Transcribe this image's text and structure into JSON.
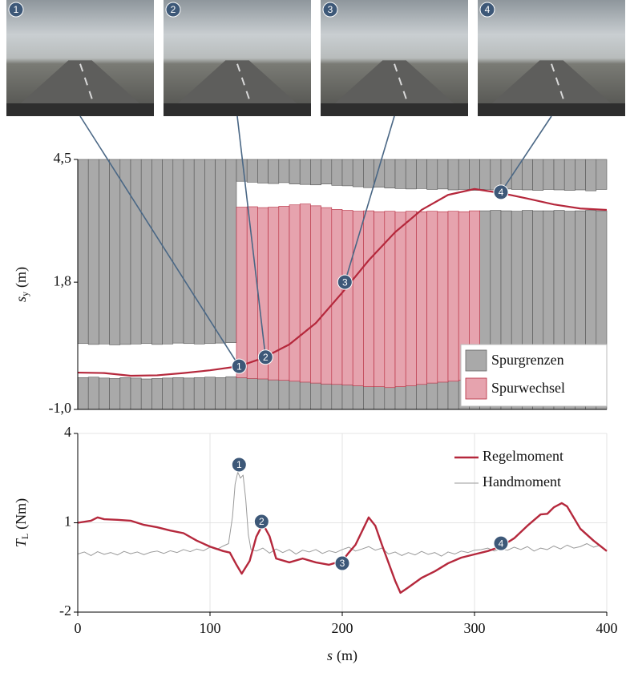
{
  "photos": [
    {
      "label": "1"
    },
    {
      "label": "2"
    },
    {
      "label": "3"
    },
    {
      "label": "4"
    }
  ],
  "chart_data": [
    {
      "type": "range",
      "ylabel": {
        "symbol": "s",
        "subscript": "y",
        "unit": "(m)"
      },
      "xlim": [
        0,
        400
      ],
      "ylim": [
        -1,
        4.5
      ],
      "yticks": [
        {
          "value": 4.5,
          "label": "4,5"
        },
        {
          "value": 1.8,
          "label": "1,8"
        },
        {
          "value": -1,
          "label": "-1,0"
        }
      ],
      "bins": [
        0,
        8,
        16,
        24,
        32,
        40,
        48,
        56,
        64,
        72,
        80,
        88,
        96,
        104,
        112,
        120,
        128,
        136,
        144,
        152,
        160,
        168,
        176,
        184,
        192,
        200,
        208,
        216,
        224,
        232,
        240,
        248,
        256,
        264,
        272,
        280,
        288,
        296,
        304,
        312,
        320,
        328,
        336,
        344,
        352,
        360,
        368,
        376,
        384,
        392,
        400
      ],
      "series": [
        {
          "name": "Spurgrenzen",
          "color": "#a9a9a9",
          "span": "outside",
          "upper": [
            0.45,
            0.43,
            0.44,
            0.42,
            0.43,
            0.44,
            0.45,
            0.43,
            0.44,
            0.46,
            0.45,
            0.44,
            0.45,
            0.46,
            0.47,
            4.02,
            4.0,
            3.98,
            3.97,
            3.99,
            3.96,
            3.95,
            3.94,
            3.96,
            3.93,
            3.92,
            3.9,
            3.88,
            3.89,
            3.87,
            3.86,
            3.85,
            3.86,
            3.84,
            3.85,
            3.83,
            3.84,
            3.82,
            3.84,
            3.83,
            3.85,
            3.84,
            3.83,
            3.82,
            3.84,
            3.83,
            3.82,
            3.83,
            3.81,
            3.84
          ],
          "lower": [
            -0.3,
            -0.29,
            -0.31,
            -0.32,
            -0.3,
            -0.31,
            -0.33,
            -0.32,
            -0.31,
            -0.3,
            -0.31,
            -0.3,
            -0.29,
            -0.3,
            -0.28,
            -0.28,
            -0.27,
            -0.28,
            -0.27,
            -0.28,
            -0.29,
            -0.28,
            -0.3,
            -0.29,
            -0.3,
            -0.31,
            -0.3,
            -0.32,
            -0.31,
            -0.3,
            -0.32,
            -0.33,
            -0.34,
            -0.33,
            -0.32,
            -0.33,
            -0.34,
            -0.33,
            3.37,
            3.38,
            3.37,
            3.36,
            3.38,
            3.37,
            3.37,
            3.38,
            3.36,
            3.37,
            3.38,
            3.37
          ]
        },
        {
          "name": "Spurwechsel",
          "color": "#e6a3ae",
          "span": "between",
          "upper": [
            null,
            null,
            null,
            null,
            null,
            null,
            null,
            null,
            null,
            null,
            null,
            null,
            null,
            null,
            null,
            3.45,
            3.46,
            3.44,
            3.45,
            3.47,
            3.5,
            3.52,
            3.48,
            3.44,
            3.4,
            3.38,
            3.36,
            3.37,
            3.35,
            3.36,
            3.34,
            3.36,
            3.35,
            3.36,
            3.35,
            3.36,
            3.35,
            3.37,
            null,
            null,
            null,
            null,
            null,
            null,
            null,
            null,
            null,
            null,
            null,
            null
          ],
          "lower": [
            null,
            null,
            null,
            null,
            null,
            null,
            null,
            null,
            null,
            null,
            null,
            null,
            null,
            null,
            null,
            -0.3,
            -0.32,
            -0.33,
            -0.35,
            -0.36,
            -0.38,
            -0.4,
            -0.42,
            -0.44,
            -0.45,
            -0.46,
            -0.48,
            -0.5,
            -0.5,
            -0.52,
            -0.5,
            -0.48,
            -0.45,
            -0.42,
            -0.4,
            -0.38,
            -0.36,
            -0.35,
            null,
            null,
            null,
            null,
            null,
            null,
            null,
            null,
            null,
            null,
            null,
            null
          ]
        }
      ],
      "path": {
        "color": "#b5283c",
        "x": [
          0,
          20,
          40,
          60,
          80,
          100,
          122,
          140,
          160,
          180,
          200,
          220,
          240,
          260,
          280,
          300,
          320,
          340,
          360,
          380,
          400
        ],
        "values": [
          -0.19,
          -0.2,
          -0.26,
          -0.25,
          -0.2,
          -0.14,
          -0.05,
          0.13,
          0.43,
          0.9,
          1.57,
          2.28,
          2.9,
          3.39,
          3.72,
          3.85,
          3.76,
          3.64,
          3.51,
          3.42,
          3.39
        ]
      },
      "annotations": [
        {
          "label": "1",
          "x": 122,
          "y": -0.05
        },
        {
          "label": "2",
          "x": 142,
          "y": 0.15
        },
        {
          "label": "3",
          "x": 202,
          "y": 1.8
        },
        {
          "label": "4",
          "x": 320,
          "y": 3.78
        }
      ],
      "legend": "lower right"
    },
    {
      "type": "line",
      "ylabel": {
        "symbol": "T",
        "subscript": "L",
        "unit": "(Nm)"
      },
      "xlabel": {
        "symbol": "s",
        "unit": "(m)"
      },
      "xlim": [
        0,
        400
      ],
      "ylim": [
        -2,
        4
      ],
      "xticks": [
        0,
        100,
        200,
        300,
        400
      ],
      "yticks": [
        -2,
        1,
        4
      ],
      "grid": true,
      "series": [
        {
          "name": "Regelmoment",
          "color": "#b5283c",
          "x": [
            0,
            10,
            15,
            20,
            30,
            40,
            50,
            60,
            70,
            80,
            90,
            100,
            110,
            115,
            120,
            124,
            130,
            135,
            140,
            145,
            150,
            160,
            170,
            180,
            190,
            200,
            205,
            210,
            220,
            225,
            230,
            240,
            244,
            250,
            260,
            270,
            280,
            290,
            300,
            310,
            320,
            330,
            340,
            350,
            355,
            360,
            366,
            370,
            380,
            390,
            400
          ],
          "values": [
            1.0,
            1.07,
            1.18,
            1.12,
            1.1,
            1.07,
            0.93,
            0.85,
            0.74,
            0.65,
            0.4,
            0.2,
            0.05,
            0.0,
            -0.41,
            -0.71,
            -0.28,
            0.53,
            0.96,
            0.55,
            -0.2,
            -0.33,
            -0.2,
            -0.33,
            -0.41,
            -0.28,
            0.0,
            0.26,
            1.18,
            0.9,
            0.26,
            -0.95,
            -1.35,
            -1.17,
            -0.85,
            -0.63,
            -0.36,
            -0.17,
            -0.06,
            0.05,
            0.2,
            0.48,
            0.9,
            1.28,
            1.3,
            1.52,
            1.66,
            1.55,
            0.8,
            0.4,
            0.05
          ]
        },
        {
          "name": "Handmoment",
          "color": "#9a9a9a",
          "x": [
            0,
            5,
            10,
            15,
            20,
            25,
            30,
            35,
            40,
            45,
            50,
            55,
            60,
            65,
            70,
            75,
            80,
            85,
            90,
            95,
            100,
            105,
            110,
            114,
            117,
            119,
            121,
            123,
            125,
            127,
            129,
            131,
            135,
            140,
            145,
            150,
            155,
            160,
            165,
            170,
            175,
            180,
            185,
            190,
            195,
            200,
            205,
            210,
            215,
            220,
            225,
            230,
            235,
            240,
            245,
            250,
            255,
            260,
            265,
            270,
            275,
            280,
            285,
            290,
            295,
            300,
            305,
            310,
            315,
            320,
            325,
            330,
            335,
            340,
            345,
            350,
            355,
            360,
            365,
            370,
            375,
            380,
            385,
            390,
            395,
            400
          ],
          "values": [
            -0.05,
            0.02,
            -0.1,
            0.03,
            -0.06,
            0.0,
            -0.08,
            0.04,
            -0.04,
            0.02,
            -0.07,
            0.01,
            0.05,
            -0.03,
            0.06,
            0.0,
            0.1,
            0.03,
            0.12,
            0.06,
            0.18,
            0.1,
            0.22,
            0.3,
            1.2,
            2.3,
            2.7,
            2.5,
            2.6,
            1.8,
            0.6,
            0.1,
            0.05,
            0.15,
            -0.02,
            0.12,
            0.0,
            0.1,
            -0.05,
            0.08,
            0.02,
            0.1,
            -0.03,
            0.06,
            0.0,
            0.1,
            0.18,
            0.05,
            0.12,
            0.2,
            0.08,
            0.15,
            -0.05,
            0.02,
            -0.1,
            0.0,
            -0.08,
            0.04,
            -0.06,
            0.0,
            -0.12,
            0.02,
            -0.05,
            0.05,
            0.0,
            0.08,
            0.1,
            0.15,
            0.05,
            0.12,
            0.08,
            0.18,
            0.1,
            0.2,
            0.05,
            0.15,
            0.1,
            0.22,
            0.12,
            0.25,
            0.15,
            0.2,
            0.3,
            0.18,
            0.25,
            0.05
          ]
        }
      ],
      "annotations": [
        {
          "label": "1",
          "x": 122,
          "y": 2.95
        },
        {
          "label": "2",
          "x": 139,
          "y": 1.04
        },
        {
          "label": "3",
          "x": 200,
          "y": -0.36
        },
        {
          "label": "4",
          "x": 320,
          "y": 0.31
        }
      ],
      "legend": "upper right"
    }
  ]
}
